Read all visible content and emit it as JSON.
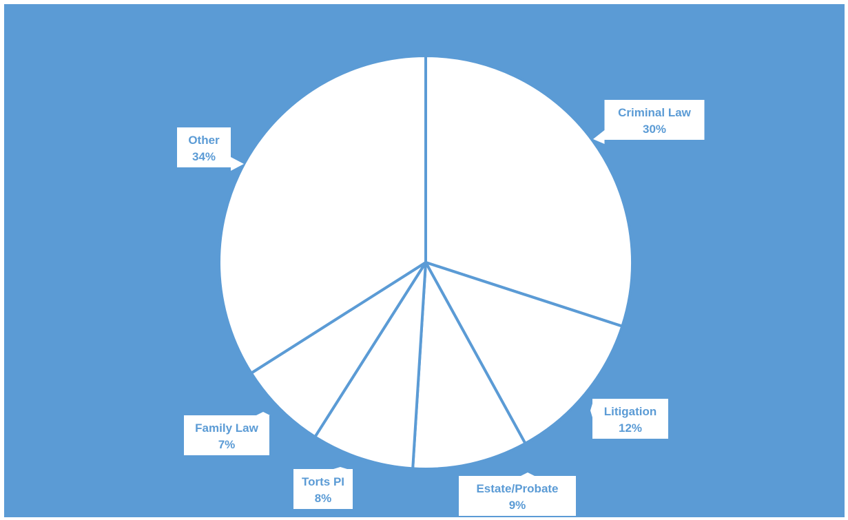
{
  "chart_data": {
    "type": "pie",
    "title": "",
    "background_color": "#5B9BD5",
    "slice_color": "#FFFFFF",
    "label_color": "#5B9BD5",
    "start_angle_deg": 0,
    "direction": "clockwise",
    "slices": [
      {
        "label": "Criminal Law",
        "value": 30,
        "value_label": "30%"
      },
      {
        "label": "Litigation",
        "value": 12,
        "value_label": "12%"
      },
      {
        "label": "Estate/Probate",
        "value": 9,
        "value_label": "9%"
      },
      {
        "label": "Torts PI",
        "value": 8,
        "value_label": "8%"
      },
      {
        "label": "Family Law",
        "value": 7,
        "value_label": "7%"
      },
      {
        "label": "Other",
        "value": 34,
        "value_label": "34%"
      }
    ]
  }
}
